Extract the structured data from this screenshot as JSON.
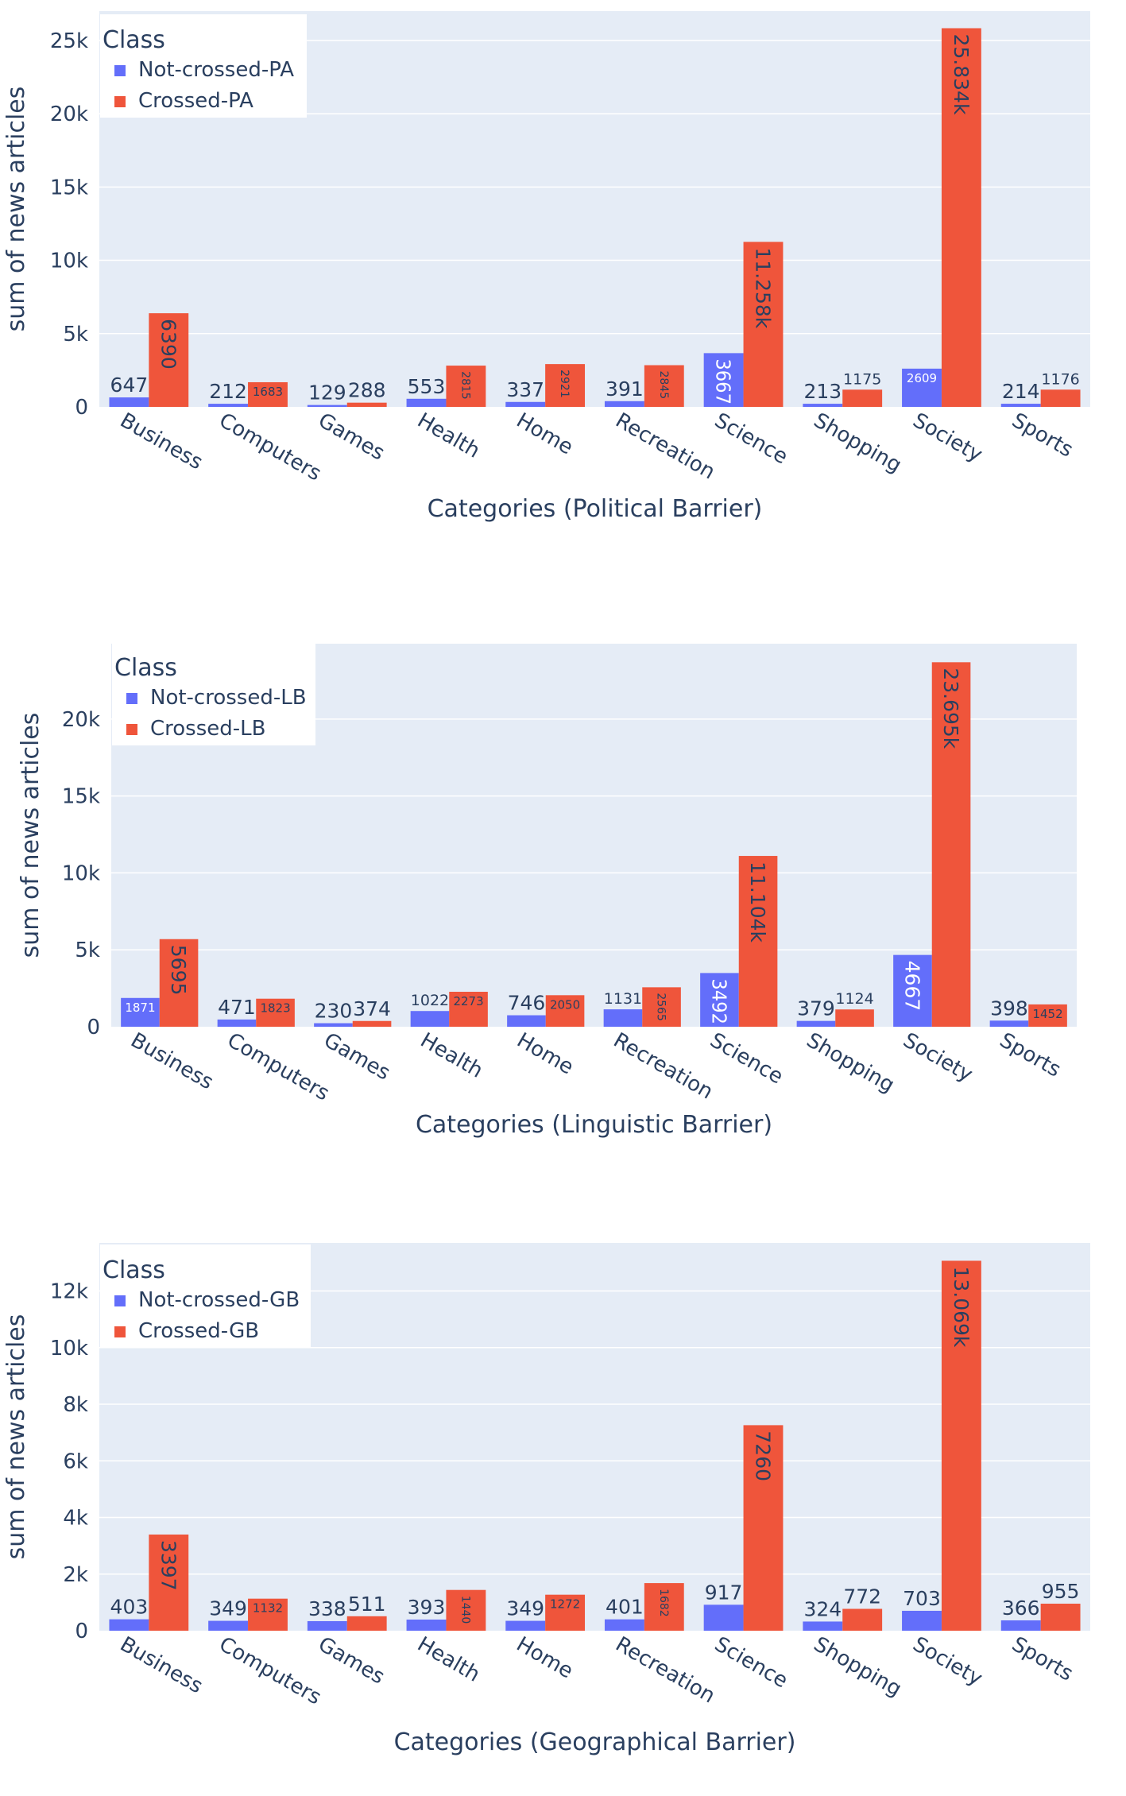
{
  "chart_data": [
    {
      "type": "bar",
      "title": "",
      "xlabel": "Categories (Political Barrier)",
      "ylabel": "sum of news articles",
      "ylim": [
        0,
        27000
      ],
      "yticks": [
        0,
        5000,
        10000,
        15000,
        20000,
        25000
      ],
      "ytick_labels": [
        "0",
        "5k",
        "10k",
        "15k",
        "20k",
        "25k"
      ],
      "legend_title": "Class",
      "legend_position": "top-left",
      "categories": [
        "Business",
        "Computers",
        "Games",
        "Health",
        "Home",
        "Recreation",
        "Science",
        "Shopping",
        "Society",
        "Sports"
      ],
      "series": [
        {
          "name": "Not-crossed-PA",
          "color": "#636efa",
          "values": [
            647,
            212,
            129,
            553,
            337,
            391,
            3667,
            213,
            2609,
            214
          ],
          "labels": [
            "647",
            "212",
            "129",
            "553",
            "337",
            "391",
            "3667",
            "213",
            "2609",
            "214"
          ],
          "label_styles": [
            "out",
            "out",
            "out",
            "out",
            "out",
            "out",
            "in-rot",
            "out",
            "in-small",
            "out"
          ]
        },
        {
          "name": "Crossed-PA",
          "color": "#ef553b",
          "values": [
            6390,
            1683,
            288,
            2815,
            2921,
            2845,
            11258,
            1175,
            25834,
            1176
          ],
          "labels": [
            "6390",
            "1683",
            "288",
            "2815",
            "2921",
            "2845",
            "11.258k",
            "1175",
            "25.834k",
            "1176"
          ],
          "label_styles": [
            "in-rot",
            "in-small",
            "out",
            "in-rot-small",
            "in-rot-small",
            "in-rot-small",
            "in-rot",
            "out-small",
            "in-rot",
            "out-small"
          ]
        }
      ]
    },
    {
      "type": "bar",
      "title": "",
      "xlabel": "Categories (Linguistic Barrier)",
      "ylabel": "sum of news articles",
      "ylim": [
        0,
        24900
      ],
      "yticks": [
        0,
        5000,
        10000,
        15000,
        20000
      ],
      "ytick_labels": [
        "0",
        "5k",
        "10k",
        "15k",
        "20k"
      ],
      "legend_title": "Class",
      "legend_position": "top-left",
      "categories": [
        "Business",
        "Computers",
        "Games",
        "Health",
        "Home",
        "Recreation",
        "Science",
        "Shopping",
        "Society",
        "Sports"
      ],
      "series": [
        {
          "name": "Not-crossed-LB",
          "color": "#636efa",
          "values": [
            1871,
            471,
            230,
            1022,
            746,
            1131,
            3492,
            379,
            4667,
            398
          ],
          "labels": [
            "1871",
            "471",
            "230",
            "1022",
            "746",
            "1131",
            "3492",
            "379",
            "4667",
            "398"
          ],
          "label_styles": [
            "in-small",
            "out",
            "out",
            "out-small",
            "out",
            "out-small",
            "in-rot",
            "out",
            "in-rot",
            "out"
          ]
        },
        {
          "name": "Crossed-LB",
          "color": "#ef553b",
          "values": [
            5695,
            1823,
            374,
            2273,
            2050,
            2565,
            11104,
            1124,
            23695,
            1452
          ],
          "labels": [
            "5695",
            "1823",
            "374",
            "2273",
            "2050",
            "2565",
            "11.104k",
            "1124",
            "23.695k",
            "1452"
          ],
          "label_styles": [
            "in-rot",
            "in-small",
            "out",
            "in-small",
            "in-small",
            "in-rot-small",
            "in-rot",
            "out-small",
            "in-rot",
            "in-small"
          ]
        }
      ]
    },
    {
      "type": "bar",
      "title": "",
      "xlabel": "Categories (Geographical Barrier)",
      "ylabel": "sum of news articles",
      "ylim": [
        0,
        13700
      ],
      "yticks": [
        0,
        2000,
        4000,
        6000,
        8000,
        10000,
        12000
      ],
      "ytick_labels": [
        "0",
        "2k",
        "4k",
        "6k",
        "8k",
        "10k",
        "12k"
      ],
      "legend_title": "Class",
      "legend_position": "top-left",
      "categories": [
        "Business",
        "Computers",
        "Games",
        "Health",
        "Home",
        "Recreation",
        "Science",
        "Shopping",
        "Society",
        "Sports"
      ],
      "series": [
        {
          "name": "Not-crossed-GB",
          "color": "#636efa",
          "values": [
            403,
            349,
            338,
            393,
            349,
            401,
            917,
            324,
            703,
            366
          ],
          "labels": [
            "403",
            "349",
            "338",
            "393",
            "349",
            "401",
            "917",
            "324",
            "703",
            "366"
          ],
          "label_styles": [
            "out",
            "out",
            "out",
            "out",
            "out",
            "out",
            "out",
            "out",
            "out",
            "out"
          ]
        },
        {
          "name": "Crossed-GB",
          "color": "#ef553b",
          "values": [
            3397,
            1132,
            511,
            1440,
            1272,
            1682,
            7260,
            772,
            13069,
            955
          ],
          "labels": [
            "3397",
            "1132",
            "511",
            "1440",
            "1272",
            "1682",
            "7260",
            "772",
            "13.069k",
            "955"
          ],
          "label_styles": [
            "in-rot",
            "in-small",
            "out",
            "in-rot-small",
            "in-small",
            "in-rot-small",
            "in-rot",
            "out",
            "in-rot",
            "out"
          ]
        }
      ]
    }
  ]
}
